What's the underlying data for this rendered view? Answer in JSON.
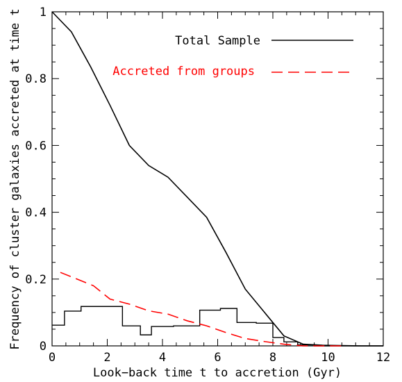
{
  "chart_data": {
    "type": "line",
    "xlabel": "Look−back time t to accretion (Gyr)",
    "ylabel": "Frequency of cluster galaxies accreted at time t",
    "xlim": [
      0,
      12
    ],
    "ylim": [
      0,
      1
    ],
    "x_ticks": [
      "0",
      "2",
      "4",
      "6",
      "8",
      "10",
      "12"
    ],
    "y_ticks": [
      "0",
      "0.2",
      "0.4",
      "0.6",
      "0.8",
      "1"
    ],
    "legend_position": "top-right",
    "series": [
      {
        "name": "Total Sample",
        "color": "#000000",
        "style": "solid",
        "x": [
          0,
          0.7,
          1.4,
          2.1,
          2.8,
          3.5,
          4.2,
          4.9,
          5.6,
          6.3,
          7.0,
          7.7,
          8.4,
          9.1,
          9.8,
          10.5,
          11.2,
          12
        ],
        "y": [
          1.0,
          0.94,
          0.835,
          0.72,
          0.6,
          0.54,
          0.505,
          0.445,
          0.385,
          0.28,
          0.17,
          0.1,
          0.03,
          0.005,
          0.002,
          0.001,
          0.0,
          0.0
        ]
      },
      {
        "name": "Accreted from groups",
        "color": "#ff0000",
        "style": "dashed",
        "x": [
          0.3,
          0.9,
          1.5,
          2.1,
          2.8,
          3.5,
          4.2,
          4.9,
          5.6,
          6.3,
          7.0,
          7.7,
          8.4,
          9.1,
          9.8,
          10.5
        ],
        "y": [
          0.22,
          0.2,
          0.18,
          0.14,
          0.125,
          0.105,
          0.095,
          0.075,
          0.06,
          0.04,
          0.022,
          0.013,
          0.005,
          0.0,
          0.0,
          0.0
        ]
      }
    ],
    "histogram": {
      "name": "",
      "color": "#000000",
      "bin_edges": [
        0,
        0.45,
        1.05,
        1.4,
        2.55,
        3.2,
        3.6,
        4.4,
        5.35,
        6.1,
        6.7,
        7.4,
        8.0,
        8.4,
        8.9,
        9.5,
        12
      ],
      "values": [
        0.062,
        0.104,
        0.118,
        0.118,
        0.06,
        0.033,
        0.058,
        0.06,
        0.107,
        0.112,
        0.07,
        0.068,
        0.025,
        0.012,
        0.003,
        0.0
      ]
    }
  }
}
